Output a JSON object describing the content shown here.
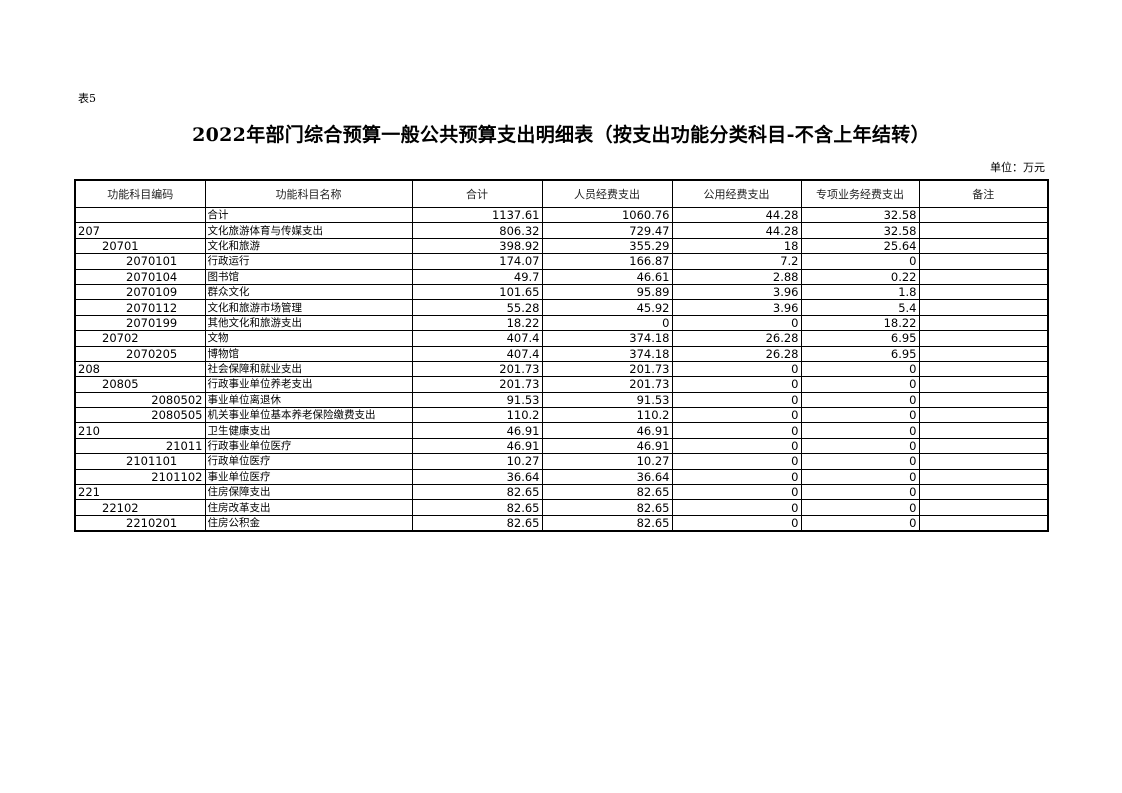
{
  "table_label": "表5",
  "title": "2022年部门综合预算一般公共预算支出明细表（按支出功能分类科目-不含上年结转）",
  "unit": "单位：万元",
  "columns": [
    "功能科目编码",
    "功能科目名称",
    "合计",
    "人员经费支出",
    "公用经费支出",
    "专项业务经费支出",
    "备注"
  ],
  "rows": [
    {
      "code": "",
      "align": "left",
      "name": "合计",
      "total": "1137.61",
      "personnel": "1060.76",
      "public": "44.28",
      "special": "32.58",
      "note": ""
    },
    {
      "code": "207",
      "align": "left",
      "name": "文化旅游体育与传媒支出",
      "total": "806.32",
      "personnel": "729.47",
      "public": "44.28",
      "special": "32.58",
      "note": ""
    },
    {
      "code": "20701",
      "align": "ind1",
      "name": "文化和旅游",
      "total": "398.92",
      "personnel": "355.29",
      "public": "18",
      "special": "25.64",
      "note": ""
    },
    {
      "code": "2070101",
      "align": "ind2",
      "name": "行政运行",
      "total": "174.07",
      "personnel": "166.87",
      "public": "7.2",
      "special": "0",
      "note": ""
    },
    {
      "code": "2070104",
      "align": "ind2",
      "name": "图书馆",
      "total": "49.7",
      "personnel": "46.61",
      "public": "2.88",
      "special": "0.22",
      "note": ""
    },
    {
      "code": "2070109",
      "align": "ind2",
      "name": "群众文化",
      "total": "101.65",
      "personnel": "95.89",
      "public": "3.96",
      "special": "1.8",
      "note": ""
    },
    {
      "code": "2070112",
      "align": "ind2",
      "name": "文化和旅游市场管理",
      "total": "55.28",
      "personnel": "45.92",
      "public": "3.96",
      "special": "5.4",
      "note": ""
    },
    {
      "code": "2070199",
      "align": "ind2",
      "name": "其他文化和旅游支出",
      "total": "18.22",
      "personnel": "0",
      "public": "0",
      "special": "18.22",
      "note": ""
    },
    {
      "code": "20702",
      "align": "ind1",
      "name": "文物",
      "total": "407.4",
      "personnel": "374.18",
      "public": "26.28",
      "special": "6.95",
      "note": ""
    },
    {
      "code": "2070205",
      "align": "ind2",
      "name": "博物馆",
      "total": "407.4",
      "personnel": "374.18",
      "public": "26.28",
      "special": "6.95",
      "note": ""
    },
    {
      "code": "208",
      "align": "left",
      "name": "社会保障和就业支出",
      "total": "201.73",
      "personnel": "201.73",
      "public": "0",
      "special": "0",
      "note": ""
    },
    {
      "code": "20805",
      "align": "ind1",
      "name": "行政事业单位养老支出",
      "total": "201.73",
      "personnel": "201.73",
      "public": "0",
      "special": "0",
      "note": ""
    },
    {
      "code": "2080502",
      "align": "right",
      "name": "事业单位离退休",
      "total": "91.53",
      "personnel": "91.53",
      "public": "0",
      "special": "0",
      "note": ""
    },
    {
      "code": "2080505",
      "align": "right",
      "name": "机关事业单位基本养老保险缴费支出",
      "total": "110.2",
      "personnel": "110.2",
      "public": "0",
      "special": "0",
      "note": ""
    },
    {
      "code": "210",
      "align": "left",
      "name": "卫生健康支出",
      "total": "46.91",
      "personnel": "46.91",
      "public": "0",
      "special": "0",
      "note": ""
    },
    {
      "code": "21011",
      "align": "right",
      "name": "行政事业单位医疗",
      "total": "46.91",
      "personnel": "46.91",
      "public": "0",
      "special": "0",
      "note": ""
    },
    {
      "code": "2101101",
      "align": "ind2",
      "name": "行政单位医疗",
      "total": "10.27",
      "personnel": "10.27",
      "public": "0",
      "special": "0",
      "note": ""
    },
    {
      "code": "2101102",
      "align": "right",
      "name": "事业单位医疗",
      "total": "36.64",
      "personnel": "36.64",
      "public": "0",
      "special": "0",
      "note": ""
    },
    {
      "code": "221",
      "align": "left",
      "name": "住房保障支出",
      "total": "82.65",
      "personnel": "82.65",
      "public": "0",
      "special": "0",
      "note": ""
    },
    {
      "code": "22102",
      "align": "ind1",
      "name": "住房改革支出",
      "total": "82.65",
      "personnel": "82.65",
      "public": "0",
      "special": "0",
      "note": ""
    },
    {
      "code": "2210201",
      "align": "ind2",
      "name": "住房公积金",
      "total": "82.65",
      "personnel": "82.65",
      "public": "0",
      "special": "0",
      "note": ""
    }
  ]
}
